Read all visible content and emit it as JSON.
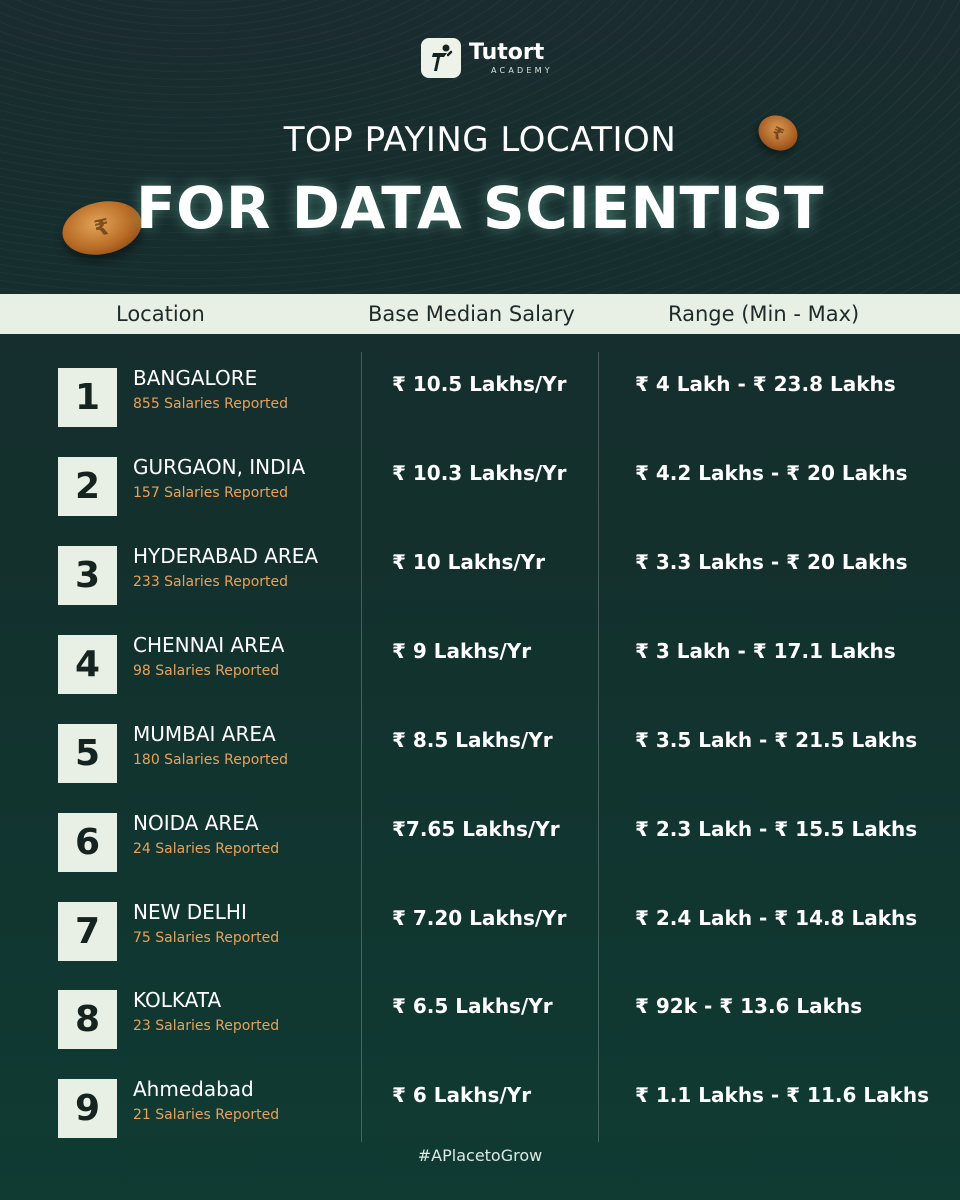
{
  "brand": {
    "name": "Tutort",
    "subtitle": "ACADEMY",
    "accent_color": "#e8a25a",
    "panel_color": "#e8f0e5"
  },
  "title": {
    "line1": "TOP PAYING LOCATION",
    "line2": "FOR DATA SCIENTIST"
  },
  "table": {
    "headers": {
      "location": "Location",
      "salary": "Base Median Salary",
      "range": "Range (Min - Max)"
    },
    "rows": [
      {
        "rank": "1",
        "city": "BANGALORE",
        "reported": "855 Salaries Reported",
        "salary": "₹ 10.5 Lakhs/Yr",
        "range": "₹ 4 Lakh - ₹ 23.8 Lakhs"
      },
      {
        "rank": "2",
        "city": "GURGAON, INDIA",
        "reported": "157 Salaries Reported",
        "salary": "₹ 10.3 Lakhs/Yr",
        "range": "₹ 4.2 Lakhs - ₹ 20 Lakhs"
      },
      {
        "rank": "3",
        "city": "HYDERABAD AREA",
        "reported": "233 Salaries Reported",
        "salary": "₹ 10 Lakhs/Yr",
        "range": "₹ 3.3 Lakhs - ₹ 20 Lakhs"
      },
      {
        "rank": "4",
        "city": "CHENNAI AREA",
        "reported": "98 Salaries Reported",
        "salary": "₹ 9 Lakhs/Yr",
        "range": "₹ 3 Lakh - ₹ 17.1 Lakhs"
      },
      {
        "rank": "5",
        "city": "MUMBAI AREA",
        "reported": "180 Salaries Reported",
        "salary": "₹ 8.5 Lakhs/Yr",
        "range": "₹ 3.5 Lakh - ₹ 21.5 Lakhs"
      },
      {
        "rank": "6",
        "city": "NOIDA AREA",
        "reported": "24 Salaries Reported",
        "salary": "₹7.65 Lakhs/Yr",
        "range": "₹ 2.3 Lakh - ₹ 15.5 Lakhs"
      },
      {
        "rank": "7",
        "city": "NEW DELHI",
        "reported": "75 Salaries Reported",
        "salary": "₹ 7.20 Lakhs/Yr",
        "range": "₹ 2.4 Lakh - ₹ 14.8 Lakhs"
      },
      {
        "rank": "8",
        "city": "KOLKATA",
        "reported": "23 Salaries Reported",
        "salary": "₹ 6.5 Lakhs/Yr",
        "range": "₹ 92k - ₹ 13.6 Lakhs"
      },
      {
        "rank": "9",
        "city": "Ahmedabad",
        "reported": "21 Salaries Reported",
        "salary": "₹ 6 Lakhs/Yr",
        "range": "₹ 1.1 Lakhs - ₹ 11.6 Lakhs"
      }
    ]
  },
  "footer": {
    "hashtag": "#APlacetoGrow"
  },
  "icons": {
    "logo": "running-figure-icon",
    "coin": "rupee-coin-icon"
  }
}
